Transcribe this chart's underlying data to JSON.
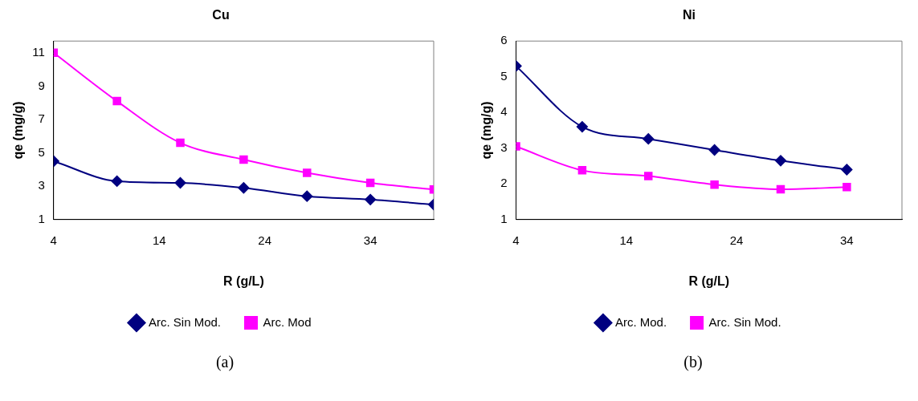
{
  "chart_data": [
    {
      "type": "line",
      "title": "Cu",
      "xlabel": "R (g/L)",
      "ylabel": "qe (mg/g)",
      "x": [
        4,
        10,
        16,
        22,
        28,
        34,
        40
      ],
      "xlim": [
        4,
        40
      ],
      "xticks": [
        4,
        14,
        24,
        34
      ],
      "ylim": [
        1,
        11.7
      ],
      "yticks": [
        1,
        3,
        5,
        7,
        9,
        11
      ],
      "grid": false,
      "legend": "bottom",
      "series": [
        {
          "name": "Arc. Sin Mod.",
          "color": "#000080",
          "marker": "diamond",
          "values": [
            4.5,
            3.3,
            3.2,
            2.9,
            2.4,
            2.2,
            1.9
          ]
        },
        {
          "name": "Arc. Mod",
          "color": "#ff00ff",
          "marker": "square",
          "values": [
            11.0,
            8.1,
            5.6,
            4.6,
            3.8,
            3.2,
            2.8
          ]
        }
      ],
      "annotations": [
        "(a)"
      ]
    },
    {
      "type": "line",
      "title": "Ni",
      "xlabel": "R (g/L)",
      "ylabel": "qe (mg/g)",
      "x": [
        4,
        10,
        16,
        22,
        28,
        34
      ],
      "xlim": [
        4,
        39
      ],
      "xticks": [
        4,
        14,
        24,
        34
      ],
      "ylim": [
        1,
        6
      ],
      "yticks": [
        1,
        2,
        3,
        4,
        5,
        6
      ],
      "grid": false,
      "legend": "bottom",
      "series": [
        {
          "name": "Arc. Mod.",
          "color": "#000080",
          "marker": "diamond",
          "values": [
            5.3,
            3.6,
            3.26,
            2.95,
            2.65,
            2.4
          ]
        },
        {
          "name": "Arc. Sin Mod.",
          "color": "#ff00ff",
          "marker": "square",
          "values": [
            3.05,
            2.38,
            2.22,
            1.98,
            1.85,
            1.91
          ]
        }
      ],
      "annotations": [
        "(b)"
      ]
    }
  ]
}
